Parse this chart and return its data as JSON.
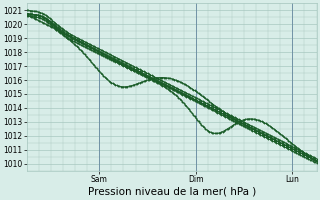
{
  "xlabel": "Pression niveau de la mer( hPa )",
  "ylim": [
    1009.5,
    1021.5
  ],
  "yticks": [
    1010,
    1011,
    1012,
    1013,
    1014,
    1015,
    1016,
    1017,
    1018,
    1019,
    1020,
    1021
  ],
  "xlim": [
    0,
    72
  ],
  "xtick_positions": [
    18,
    42,
    66
  ],
  "xtick_labels": [
    "Sam",
    "Dim",
    "Lun"
  ],
  "bg_color": "#d8ede8",
  "grid_color": "#a8c8c0",
  "line_color": "#1a5c28",
  "vline_color": "#6688a0",
  "tick_fontsize": 5.5,
  "xlabel_fontsize": 7.5
}
